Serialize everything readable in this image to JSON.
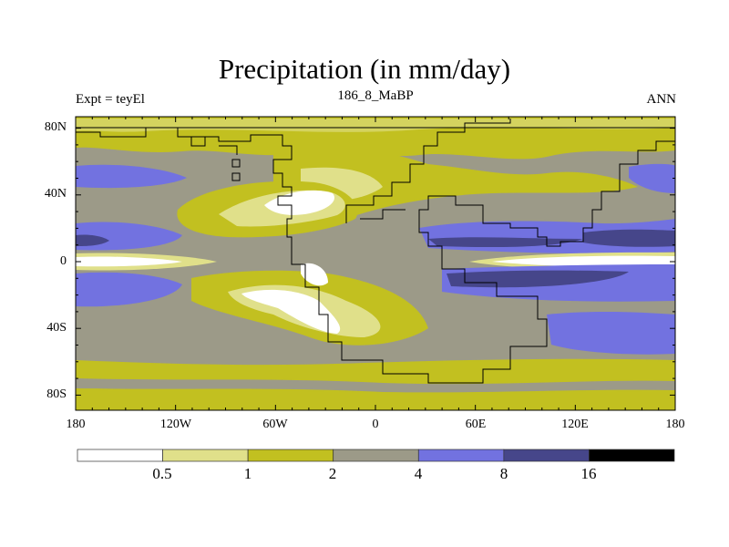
{
  "title": "Precipitation (in mm/day)",
  "left_string": "Expt = teyEl",
  "center_string": "186_8_MaBP",
  "right_string": "ANN",
  "chart_data": {
    "type": "heatmap",
    "title": "Precipitation (in mm/day)",
    "variable": "Precipitation",
    "units": "mm/day",
    "y_ticks": [
      {
        "label": "80N",
        "lat": 80
      },
      {
        "label": "40N",
        "lat": 40
      },
      {
        "label": "0",
        "lat": 0
      },
      {
        "label": "40S",
        "lat": -40
      },
      {
        "label": "80S",
        "lat": -80
      }
    ],
    "x_ticks": [
      {
        "label": "180",
        "lon": -180
      },
      {
        "label": "120W",
        "lon": -120
      },
      {
        "label": "60W",
        "lon": -60
      },
      {
        "label": "0",
        "lon": 0
      },
      {
        "label": "60E",
        "lon": 60
      },
      {
        "label": "120E",
        "lon": 120
      },
      {
        "label": "180",
        "lon": 180
      }
    ],
    "levels": [
      "0.5",
      "1",
      "2",
      "4",
      "8",
      "16"
    ],
    "colors": [
      "#ffffff",
      "#e0e08a",
      "#c2c020",
      "#9c9a88",
      "#7272e0",
      "#46468a",
      "#000000"
    ],
    "legend": "bottom"
  }
}
